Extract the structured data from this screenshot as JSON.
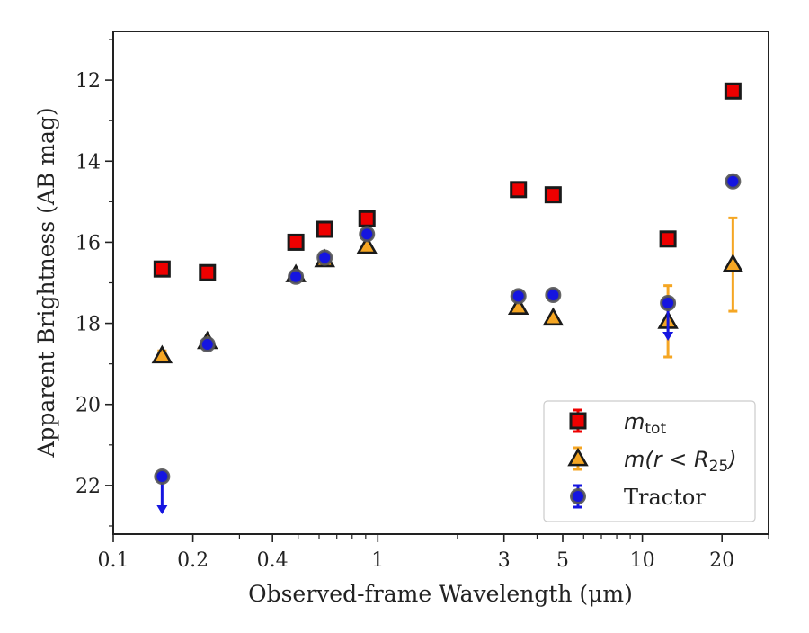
{
  "chart_data": {
    "type": "scatter",
    "title": "",
    "xlabel": "Observed-frame Wavelength (μm)",
    "ylabel": "Apparent Brightness (AB mag)",
    "xscale": "log",
    "xlim": [
      0.1,
      30
    ],
    "ylim": [
      23.2,
      10.8
    ],
    "y_inverted": true,
    "grid": false,
    "legend_position": "lower-right",
    "x_ticks": [
      {
        "value": 0.1,
        "label": "0.1"
      },
      {
        "value": 0.2,
        "label": "0.2"
      },
      {
        "value": 0.4,
        "label": "0.4"
      },
      {
        "value": 1,
        "label": "1"
      },
      {
        "value": 3,
        "label": "3"
      },
      {
        "value": 5,
        "label": "5"
      },
      {
        "value": 10,
        "label": "10"
      },
      {
        "value": 20,
        "label": "20"
      }
    ],
    "y_ticks": [
      {
        "value": 12,
        "label": "12"
      },
      {
        "value": 14,
        "label": "14"
      },
      {
        "value": 16,
        "label": "16"
      },
      {
        "value": 18,
        "label": "18"
      },
      {
        "value": 20,
        "label": "20"
      },
      {
        "value": 22,
        "label": "22"
      }
    ],
    "series": [
      {
        "name": "m_tot",
        "marker": "square",
        "color": "#ee0000",
        "edge": "#1a1a1a",
        "points": [
          {
            "x": 0.153,
            "y": 16.66
          },
          {
            "x": 0.227,
            "y": 16.75
          },
          {
            "x": 0.49,
            "y": 16.0
          },
          {
            "x": 0.63,
            "y": 15.68
          },
          {
            "x": 0.91,
            "y": 15.42
          },
          {
            "x": 3.4,
            "y": 14.7
          },
          {
            "x": 4.6,
            "y": 14.83
          },
          {
            "x": 12.5,
            "y": 15.92
          },
          {
            "x": 22.0,
            "y": 12.27
          }
        ]
      },
      {
        "name": "m(r < R25)",
        "marker": "triangle",
        "color": "#f5a623",
        "edge": "#1a1a1a",
        "points": [
          {
            "x": 0.153,
            "y": 18.8,
            "err": 0.12
          },
          {
            "x": 0.227,
            "y": 18.45
          },
          {
            "x": 0.49,
            "y": 16.8
          },
          {
            "x": 0.63,
            "y": 16.43
          },
          {
            "x": 0.91,
            "y": 16.1
          },
          {
            "x": 3.4,
            "y": 17.6
          },
          {
            "x": 4.6,
            "y": 17.87
          },
          {
            "x": 12.5,
            "y": 17.95,
            "err": 0.88
          },
          {
            "x": 22.0,
            "y": 16.55,
            "err": 1.15
          }
        ]
      },
      {
        "name": "Tractor",
        "marker": "circle",
        "color": "#1515e0",
        "edge": "#555555",
        "points": [
          {
            "x": 0.153,
            "y": 21.78,
            "upper_limit": true
          },
          {
            "x": 0.227,
            "y": 18.52
          },
          {
            "x": 0.49,
            "y": 16.85
          },
          {
            "x": 0.63,
            "y": 16.38
          },
          {
            "x": 0.91,
            "y": 15.8
          },
          {
            "x": 3.4,
            "y": 17.33
          },
          {
            "x": 4.6,
            "y": 17.3
          },
          {
            "x": 12.5,
            "y": 17.5,
            "upper_limit": true
          },
          {
            "x": 22.0,
            "y": 14.5
          }
        ]
      }
    ],
    "legend": [
      {
        "series": 0,
        "base": "m",
        "sub": "tot",
        "suffix": ""
      },
      {
        "series": 1,
        "base": "m(r < R",
        "sub": "25",
        "suffix": ")"
      },
      {
        "series": 2,
        "base": "Tractor",
        "sub": "",
        "suffix": ""
      }
    ]
  }
}
